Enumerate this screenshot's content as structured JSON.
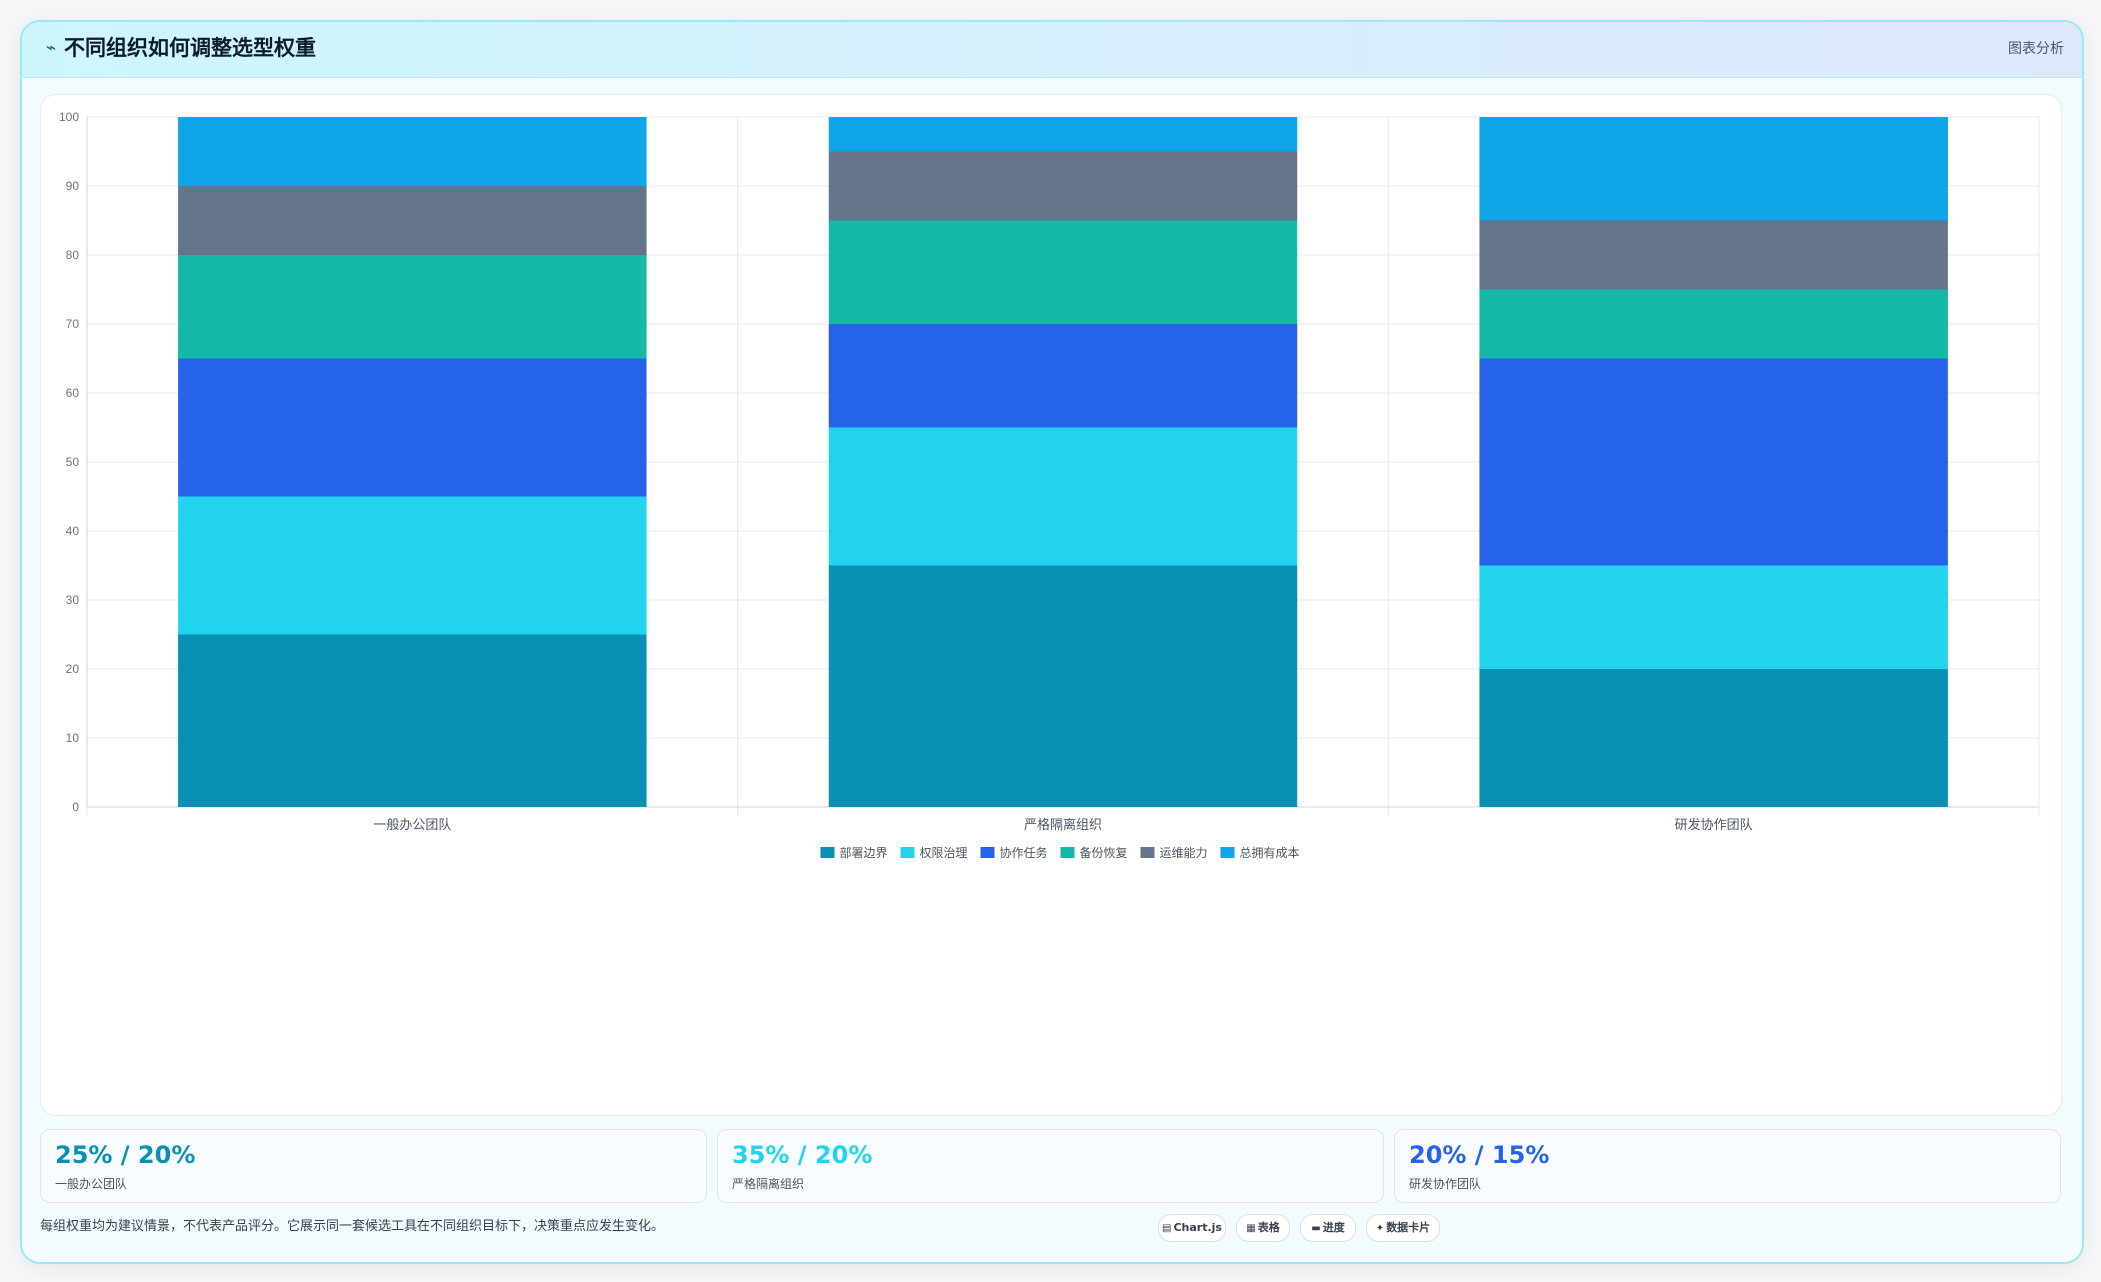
{
  "header": {
    "icon": "trend-line-icon",
    "title": "不同组织如何调整选型权重",
    "right_label": "图表分析"
  },
  "chart_data": {
    "type": "bar",
    "stacked": true,
    "categories": [
      "一般办公团队",
      "严格隔离组织",
      "研发协作团队"
    ],
    "series": [
      {
        "name": "部署边界",
        "color": "#0891b2",
        "values": [
          25,
          35,
          20
        ]
      },
      {
        "name": "权限治理",
        "color": "#22d3ee",
        "values": [
          20,
          20,
          15
        ]
      },
      {
        "name": "协作任务",
        "color": "#2563eb",
        "values": [
          20,
          15,
          30
        ]
      },
      {
        "name": "备份恢复",
        "color": "#14b8a6",
        "values": [
          15,
          15,
          10
        ]
      },
      {
        "name": "运维能力",
        "color": "#64748b",
        "values": [
          10,
          10,
          10
        ]
      },
      {
        "name": "总拥有成本",
        "color": "#0ea5e9",
        "values": [
          10,
          5,
          15
        ]
      }
    ],
    "ylim": [
      0,
      100
    ],
    "yticks": [
      0,
      10,
      20,
      30,
      40,
      50,
      60,
      70,
      80,
      90,
      100
    ],
    "grid": true,
    "legend_position": "bottom"
  },
  "stats": [
    {
      "value": "25% / 20%",
      "label": "一般办公团队",
      "color": "#0891b2"
    },
    {
      "value": "35% / 20%",
      "label": "严格隔离组织",
      "color": "#22d3ee"
    },
    {
      "value": "20% / 15%",
      "label": "研发协作团队",
      "color": "#2563eb"
    }
  ],
  "footer": {
    "note": "每组权重均为建议情景，不代表产品评分。它展示同一套候选工具在不同组织目标下，决策重点应发生变化。",
    "chips": [
      {
        "icon": "chart-icon",
        "glyph": "▤",
        "label": "Chart.js"
      },
      {
        "icon": "table-icon",
        "glyph": "▦",
        "label": "表格"
      },
      {
        "icon": "progress-icon",
        "glyph": "▬",
        "label": "进度"
      },
      {
        "icon": "card-icon",
        "glyph": "✦",
        "label": "数据卡片"
      }
    ]
  }
}
